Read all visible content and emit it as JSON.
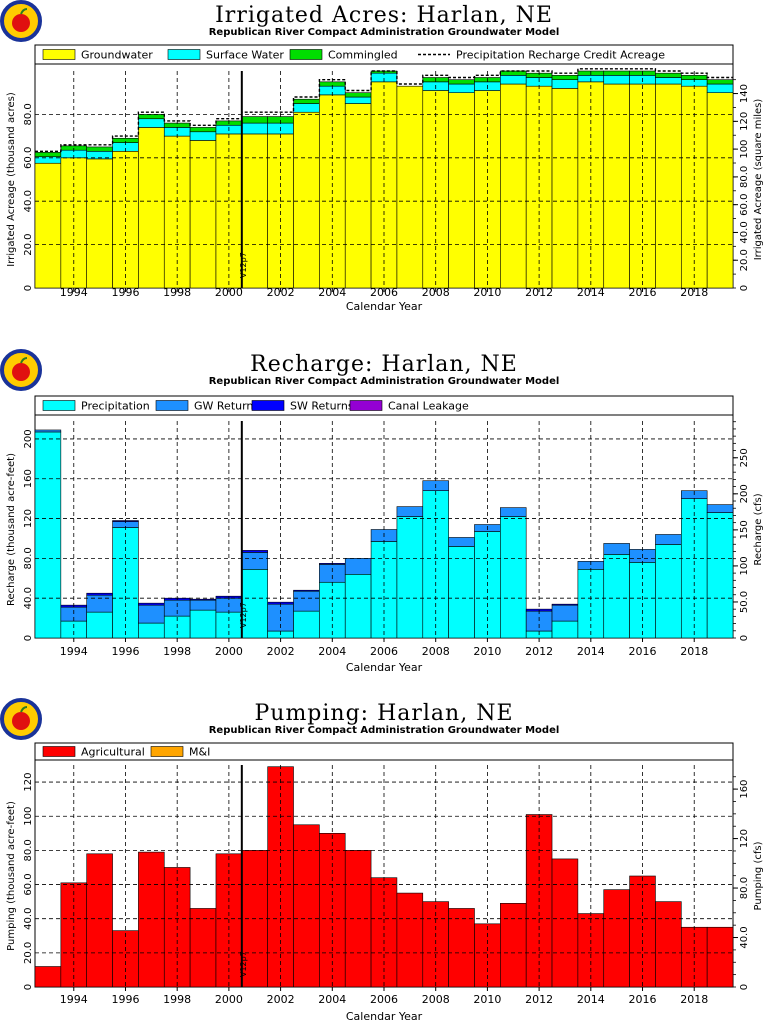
{
  "colors": {
    "groundwater": "#ffff00",
    "surface_water": "#00ffff",
    "commingled": "#00dd00",
    "precipitation": "#00ffff",
    "gw_returns": "#1e90ff",
    "sw_returns": "#0000ff",
    "canal_leakage": "#9400d3",
    "agricultural": "#ff0000",
    "mi": "#ffa500",
    "grid": "#000000",
    "logo_ring": "#1a3399",
    "logo_apple": "#e01010"
  },
  "logo_icon": "apple-seal-icon",
  "chart_data": [
    {
      "type": "bar",
      "stacked": true,
      "title": "Irrigated Acres: Harlan, NE",
      "subtitle": "Republican River Compact Administration Groundwater Model",
      "xlabel": "Calendar Year",
      "ylabel": "Irrigated Acreage (thousand acres)",
      "ylabel_right": "Irrigated Acreage (square miles)",
      "categories": [
        "1993",
        "1994",
        "1995",
        "1996",
        "1997",
        "1998",
        "1999",
        "2000",
        "2001",
        "2002",
        "2003",
        "2004",
        "2005",
        "2006",
        "2007",
        "2008",
        "2009",
        "2010",
        "2011",
        "2012",
        "2013",
        "2014",
        "2015",
        "2016",
        "2017",
        "2018",
        "2019"
      ],
      "x_tick_labels": [
        "1994",
        "1996",
        "1998",
        "2000",
        "2002",
        "2004",
        "2006",
        "2008",
        "2010",
        "2012",
        "2014",
        "2016",
        "2018"
      ],
      "ylim": [
        0,
        100
      ],
      "y_ticks": [
        20,
        40,
        60,
        80
      ],
      "y_tick_labels": [
        "20.0",
        "40.0",
        "60.0",
        "80.0"
      ],
      "right_ylim": [
        0,
        156.25
      ],
      "right_ticks": [
        20,
        40,
        60,
        80,
        100,
        120,
        140
      ],
      "right_tick_labels": [
        "20.0",
        "40.0",
        "60.0",
        "80.0",
        "100",
        "120",
        "140"
      ],
      "marker": {
        "year": 2000.5,
        "label": "V12p7"
      },
      "legend": [
        "Groundwater",
        "Surface Water",
        "Commingled",
        "Precipitation Recharge Credit Acreage"
      ],
      "series": [
        {
          "name": "Groundwater",
          "color_key": "groundwater",
          "values": [
            57.5,
            60,
            59.5,
            63,
            74,
            70,
            68,
            71,
            71,
            71,
            81,
            89,
            85,
            95,
            93,
            91,
            90,
            91,
            94,
            93,
            92,
            95,
            94,
            94,
            94,
            93,
            90
          ]
        },
        {
          "name": "Surface Water",
          "color_key": "surface_water",
          "values": [
            3,
            3.5,
            3.5,
            4,
            4,
            4,
            4,
            4,
            5,
            5,
            4,
            4,
            3,
            4,
            0,
            4,
            4,
            4,
            4,
            4,
            4,
            3,
            4,
            4,
            3,
            3,
            4
          ]
        },
        {
          "name": "Commingled",
          "color_key": "commingled",
          "values": [
            2,
            2,
            2,
            2,
            2,
            2,
            2,
            2,
            3,
            3,
            2,
            2,
            2,
            1,
            0,
            2,
            2,
            2,
            2,
            2,
            2,
            2,
            2,
            2,
            2,
            2,
            2
          ]
        }
      ],
      "precip_credit": [
        63,
        66,
        66,
        70,
        81,
        77,
        75,
        78,
        81,
        81,
        88,
        96,
        91,
        100,
        94,
        98,
        97,
        98,
        100,
        100,
        99,
        101,
        101,
        101,
        100,
        99,
        97
      ]
    },
    {
      "type": "bar",
      "stacked": true,
      "title": "Recharge: Harlan, NE",
      "subtitle": "Republican River Compact Administration Groundwater Model",
      "xlabel": "Calendar Year",
      "ylabel": "Recharge (thousand acre-feet)",
      "ylabel_right": "Recharge (cfs)",
      "categories": [
        "1993",
        "1994",
        "1995",
        "1996",
        "1997",
        "1998",
        "1999",
        "2000",
        "2001",
        "2002",
        "2003",
        "2004",
        "2005",
        "2006",
        "2007",
        "2008",
        "2009",
        "2010",
        "2011",
        "2012",
        "2013",
        "2014",
        "2015",
        "2016",
        "2017",
        "2018",
        "2019"
      ],
      "x_tick_labels": [
        "1994",
        "1996",
        "1998",
        "2000",
        "2002",
        "2004",
        "2006",
        "2008",
        "2010",
        "2012",
        "2014",
        "2016",
        "2018"
      ],
      "ylim": [
        0,
        218
      ],
      "y_ticks": [
        40,
        80,
        120,
        160,
        200
      ],
      "y_tick_labels": [
        "40.0",
        "80.0",
        "120",
        "160",
        "200"
      ],
      "right_ylim": [
        0,
        301
      ],
      "right_ticks": [
        50,
        100,
        150,
        200,
        250
      ],
      "right_tick_labels": [
        "50.0",
        "100",
        "150",
        "200",
        "250"
      ],
      "marker": {
        "year": 2000.5,
        "label": "V12p7"
      },
      "legend": [
        "Precipitation",
        "GW Returns",
        "SW Returns",
        "Canal Leakage"
      ],
      "series": [
        {
          "name": "Precipitation",
          "color_key": "precipitation",
          "values": [
            207,
            17,
            26,
            111,
            15,
            22,
            28,
            26,
            69,
            7,
            27,
            56,
            64,
            97,
            122,
            148,
            92,
            107,
            122,
            7,
            17,
            69,
            84,
            76,
            94,
            140,
            126
          ]
        },
        {
          "name": "GW Returns",
          "color_key": "gw_returns",
          "values": [
            2,
            14,
            17,
            6,
            18,
            16,
            10,
            14,
            17,
            27,
            20,
            18,
            16,
            12,
            10,
            10,
            9,
            7,
            9,
            20,
            16,
            8,
            11,
            13,
            10,
            8,
            8
          ]
        },
        {
          "name": "SW Returns",
          "color_key": "sw_returns",
          "values": [
            0,
            2,
            2,
            1,
            2,
            2,
            1,
            2,
            2,
            2,
            1,
            1,
            0,
            0,
            0,
            0,
            0,
            0,
            0,
            2,
            1,
            0,
            0,
            0,
            0,
            0,
            0
          ]
        },
        {
          "name": "Canal Leakage",
          "color_key": "canal_leakage",
          "values": [
            0,
            0,
            0,
            0,
            0,
            0,
            0,
            0,
            0,
            0,
            0,
            0,
            0,
            0,
            0,
            0,
            0,
            0,
            0,
            0,
            0,
            0,
            0,
            0,
            0,
            0,
            0
          ]
        }
      ]
    },
    {
      "type": "bar",
      "stacked": true,
      "title": "Pumping: Harlan, NE",
      "subtitle": "Republican River Compact Administration Groundwater Model",
      "xlabel": "Calendar Year",
      "ylabel": "Pumping (thousand acre-feet)",
      "ylabel_right": "Pumping (cfs)",
      "categories": [
        "1993",
        "1994",
        "1995",
        "1996",
        "1997",
        "1998",
        "1999",
        "2000",
        "2001",
        "2002",
        "2003",
        "2004",
        "2005",
        "2006",
        "2007",
        "2008",
        "2009",
        "2010",
        "2011",
        "2012",
        "2013",
        "2014",
        "2015",
        "2016",
        "2017",
        "2018",
        "2019"
      ],
      "x_tick_labels": [
        "1994",
        "1996",
        "1998",
        "2000",
        "2002",
        "2004",
        "2006",
        "2008",
        "2010",
        "2012",
        "2014",
        "2016",
        "2018"
      ],
      "ylim": [
        0,
        130
      ],
      "y_ticks": [
        20,
        40,
        60,
        80,
        100,
        120
      ],
      "y_tick_labels": [
        "20.0",
        "40.0",
        "60.0",
        "80.0",
        "100",
        "120"
      ],
      "right_ylim": [
        0,
        179.5
      ],
      "right_ticks": [
        40,
        80,
        120,
        160
      ],
      "right_tick_labels": [
        "40.0",
        "80.0",
        "120",
        "160"
      ],
      "marker": {
        "year": 2000.5,
        "label": "V12p7"
      },
      "legend": [
        "Agricultural",
        "M&I"
      ],
      "series": [
        {
          "name": "Agricultural",
          "color_key": "agricultural",
          "values": [
            12,
            61,
            78,
            33,
            79,
            70,
            46,
            78,
            80,
            129,
            95,
            90,
            80,
            64,
            55,
            50,
            46,
            37,
            49,
            101,
            75,
            43,
            57,
            65,
            50,
            35,
            35
          ]
        },
        {
          "name": "M&I",
          "color_key": "mi",
          "values": [
            0,
            0,
            0,
            0,
            0,
            0,
            0,
            0,
            0,
            0,
            0,
            0,
            0,
            0,
            0,
            0,
            0,
            0,
            0,
            0,
            0,
            0,
            0,
            0,
            0,
            0,
            0
          ]
        }
      ]
    }
  ]
}
